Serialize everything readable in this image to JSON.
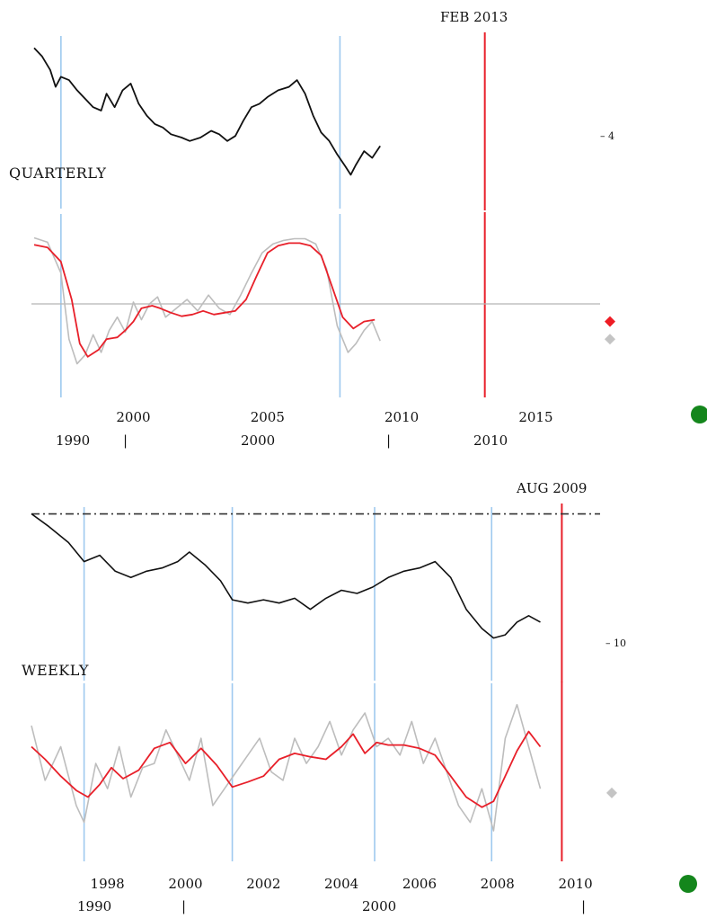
{
  "colors": {
    "price": "#111111",
    "smooth": "#e8202a",
    "raw": "#bdbdbd",
    "recession": "#9ec9ef",
    "cursor": "#e8202a",
    "zero_line": "#b5b5b5",
    "ok_dot": "#14861c",
    "marker_red": "#ee1c24",
    "marker_grey": "#c4c4c4",
    "reference_line": "#333333"
  },
  "chart_data": [
    {
      "type": "line",
      "label": "QUARTERLY",
      "cursor_label": "FEB 2013",
      "cursor_x": 2013.1,
      "side_label": "– 4",
      "x_ticks": [
        "2000",
        "2005",
        "2010",
        "2015"
      ],
      "x_tick_values": [
        2000,
        2005,
        2010,
        2015
      ],
      "secondary_ticks": [
        "1990",
        "|",
        "2000",
        "|",
        "2010"
      ],
      "xlim": [
        1996.2,
        2018.0
      ],
      "recession_markers": [
        1997.3,
        2007.7
      ],
      "top_panel": {
        "ylim": [
          0,
          100
        ],
        "series": [
          {
            "x": [
              1996.3,
              1996.6,
              1996.9,
              1997.1,
              1997.3,
              1997.6,
              1997.9,
              1998.2,
              1998.5,
              1998.8,
              1999.0,
              1999.3,
              1999.6,
              1999.9,
              2000.2,
              2000.5,
              2000.8,
              2001.1,
              2001.4,
              2001.8,
              2002.1,
              2002.5,
              2002.9,
              2003.2,
              2003.5,
              2003.8,
              2004.1,
              2004.4,
              2004.7,
              2005.0,
              2005.4,
              2005.8,
              2006.1,
              2006.4,
              2006.7,
              2007.0,
              2007.3,
              2007.6,
              2007.9,
              2008.1,
              2008.3,
              2008.6,
              2008.9,
              2009.2
            ],
            "y": [
              95,
              90,
              82,
              72,
              78,
              76,
              70,
              65,
              60,
              58,
              68,
              60,
              70,
              74,
              62,
              55,
              50,
              48,
              44,
              42,
              40,
              42,
              46,
              44,
              40,
              43,
              52,
              60,
              62,
              66,
              70,
              72,
              76,
              68,
              55,
              45,
              40,
              32,
              25,
              20,
              26,
              34,
              30,
              37
            ]
          }
        ]
      },
      "bottom_panel": {
        "ylim": [
          -100,
          100
        ],
        "zero_line": 0,
        "series": [
          {
            "x": [
              1996.3,
              1996.8,
              1997.3,
              1997.6,
              1997.9,
              1998.2,
              1998.5,
              1998.8,
              1999.1,
              1999.4,
              1999.7,
              2000.0,
              2000.3,
              2000.6,
              2000.9,
              2001.2,
              2001.6,
              2002.0,
              2002.4,
              2002.8,
              2003.2,
              2003.6,
              2004.0,
              2004.4,
              2004.8,
              2005.2,
              2005.6,
              2006.0,
              2006.4,
              2006.8,
              2007.2,
              2007.6,
              2008.0,
              2008.3,
              2008.6,
              2008.9,
              2009.2
            ],
            "y": [
              75,
              70,
              35,
              -40,
              -68,
              -58,
              -35,
              -55,
              -30,
              -15,
              -32,
              2,
              -18,
              0,
              8,
              -15,
              -5,
              5,
              -8,
              10,
              -5,
              -12,
              10,
              35,
              58,
              68,
              72,
              74,
              74,
              68,
              40,
              -25,
              -55,
              -45,
              -30,
              -20,
              -42
            ]
          },
          {
            "x": [
              1996.3,
              1996.8,
              1997.3,
              1997.7,
              1998.0,
              1998.3,
              1998.7,
              1999.0,
              1999.4,
              1999.7,
              2000.0,
              2000.3,
              2000.7,
              2001.0,
              2001.4,
              2001.8,
              2002.2,
              2002.6,
              2003.0,
              2003.4,
              2003.8,
              2004.2,
              2004.6,
              2005.0,
              2005.4,
              2005.8,
              2006.2,
              2006.6,
              2007.0,
              2007.4,
              2007.8,
              2008.2,
              2008.6,
              2009.0
            ],
            "y": [
              67,
              64,
              48,
              5,
              -45,
              -60,
              -52,
              -40,
              -38,
              -30,
              -20,
              -5,
              -2,
              -5,
              -10,
              -14,
              -12,
              -8,
              -12,
              -10,
              -8,
              5,
              32,
              58,
              66,
              69,
              69,
              66,
              55,
              20,
              -15,
              -28,
              -20,
              -18
            ]
          }
        ]
      },
      "markers": [
        {
          "color": "red",
          "y": -20
        },
        {
          "color": "grey",
          "y": -40
        }
      ]
    },
    {
      "type": "line",
      "label": "WEEKLY",
      "cursor_label": "AUG 2009",
      "cursor_x": 2009.65,
      "side_label": "– 10",
      "x_ticks": [
        "1998",
        "2000",
        "2002",
        "2004",
        "2006",
        "2008",
        "2010"
      ],
      "x_tick_values": [
        1998,
        2000,
        2002,
        2004,
        2006,
        2008,
        2010
      ],
      "secondary_ticks": [
        "1990",
        "|",
        "2000",
        "|"
      ],
      "xlim": [
        1996.05,
        2011.0
      ],
      "recession_markers": [
        1997.4,
        2001.2,
        2004.85,
        2007.85
      ],
      "top_panel": {
        "ylim": [
          0,
          100
        ],
        "reference_y": 98,
        "series": [
          {
            "x": [
              1996.05,
              1996.5,
              1997.0,
              1997.4,
              1997.8,
              1998.2,
              1998.6,
              1999.0,
              1999.4,
              1999.8,
              2000.1,
              2000.5,
              2000.9,
              2001.2,
              2001.6,
              2002.0,
              2002.4,
              2002.8,
              2003.2,
              2003.6,
              2004.0,
              2004.4,
              2004.8,
              2005.2,
              2005.6,
              2006.0,
              2006.4,
              2006.8,
              2007.2,
              2007.6,
              2007.9,
              2008.2,
              2008.5,
              2008.8,
              2009.1
            ],
            "y": [
              98,
              90,
              80,
              68,
              72,
              62,
              58,
              62,
              64,
              68,
              74,
              66,
              56,
              44,
              42,
              44,
              42,
              45,
              38,
              45,
              50,
              48,
              52,
              58,
              62,
              64,
              68,
              58,
              38,
              26,
              20,
              22,
              30,
              34,
              30
            ]
          }
        ]
      },
      "bottom_panel": {
        "ylim": [
          -100,
          100
        ],
        "series": [
          {
            "x": [
              1996.05,
              1996.4,
              1996.8,
              1997.2,
              1997.4,
              1997.7,
              1998.0,
              1998.3,
              1998.6,
              1998.9,
              1999.2,
              1999.5,
              1999.8,
              2000.1,
              2000.4,
              2000.7,
              2001.0,
              2001.3,
              2001.6,
              2001.9,
              2002.2,
              2002.5,
              2002.8,
              2003.1,
              2003.4,
              2003.7,
              2004.0,
              2004.3,
              2004.6,
              2004.9,
              2005.2,
              2005.5,
              2005.8,
              2006.1,
              2006.4,
              2006.7,
              2007.0,
              2007.3,
              2007.6,
              2007.9,
              2008.2,
              2008.5,
              2008.8,
              2009.1
            ],
            "y": [
              55,
              -10,
              30,
              -40,
              -60,
              10,
              -20,
              30,
              -30,
              5,
              10,
              50,
              20,
              -10,
              40,
              -40,
              -20,
              0,
              20,
              40,
              0,
              -10,
              40,
              10,
              30,
              60,
              20,
              50,
              70,
              30,
              40,
              20,
              60,
              10,
              40,
              0,
              -40,
              -60,
              -20,
              -70,
              40,
              80,
              30,
              -20
            ]
          },
          {
            "x": [
              1996.05,
              1996.4,
              1996.8,
              1997.2,
              1997.5,
              1997.8,
              1998.1,
              1998.4,
              1998.8,
              1999.2,
              1999.6,
              2000.0,
              2000.4,
              2000.8,
              2001.2,
              2001.6,
              2002.0,
              2002.4,
              2002.8,
              2003.2,
              2003.6,
              2004.0,
              2004.3,
              2004.6,
              2004.9,
              2005.2,
              2005.6,
              2006.0,
              2006.4,
              2006.8,
              2007.2,
              2007.6,
              2007.9,
              2008.2,
              2008.5,
              2008.8,
              2009.1
            ],
            "y": [
              30,
              15,
              -5,
              -22,
              -30,
              -15,
              5,
              -8,
              2,
              28,
              35,
              10,
              28,
              8,
              -18,
              -12,
              -5,
              15,
              22,
              18,
              15,
              30,
              45,
              22,
              35,
              32,
              32,
              28,
              20,
              -5,
              -30,
              -42,
              -35,
              -5,
              25,
              48,
              30
            ]
          }
        ]
      },
      "markers": [
        {
          "color": "grey",
          "y": -25
        }
      ]
    }
  ]
}
